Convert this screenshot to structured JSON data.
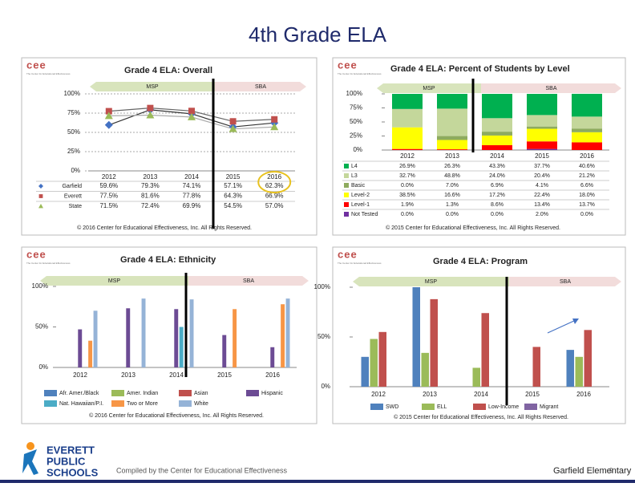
{
  "title": "4th Grade ELA",
  "cee_logo": "cee",
  "cee_tagline": "The Center for Educational Effectiveness",
  "logo": [
    "EVERETT",
    "PUBLIC",
    "SCHOOLS"
  ],
  "footer": {
    "left": "Compiled by the Center for Educational Effectiveness",
    "school": "Garfield Elementary",
    "page": "9"
  },
  "chart_data": [
    {
      "type": "line",
      "title": "Grade 4 ELA: Overall",
      "annotations": [
        "MSP",
        "SBA"
      ],
      "categories": [
        "2012",
        "2013",
        "2014",
        "2015",
        "2016"
      ],
      "series": [
        {
          "name": "Garfield",
          "color": "#4472c4",
          "values": [
            59.6,
            79.3,
            74.1,
            57.1,
            62.3
          ],
          "value_labels": [
            "59.6%",
            "79.3%",
            "74.1%",
            "57.1%",
            "62.3%"
          ]
        },
        {
          "name": "Everett",
          "color": "#c0504d",
          "values": [
            77.5,
            81.6,
            77.8,
            64.3,
            66.9
          ],
          "value_labels": [
            "77.5%",
            "81.6%",
            "77.8%",
            "64.3%",
            "66.9%"
          ]
        },
        {
          "name": "State",
          "color": "#9bbb59",
          "values": [
            71.5,
            72.4,
            69.9,
            54.5,
            57.0
          ],
          "value_labels": [
            "71.5%",
            "72.4%",
            "69.9%",
            "54.5%",
            "57.0%"
          ]
        }
      ],
      "ylim": [
        0,
        100
      ],
      "yticks": [
        {
          "value": 0,
          "label": "0%"
        },
        {
          "value": 25,
          "label": "25%"
        },
        {
          "value": 50,
          "label": "50%"
        },
        {
          "value": 75,
          "label": "75%"
        },
        {
          "value": 100,
          "label": "100%"
        }
      ],
      "grid": true,
      "copyright": "© 2016 Center for Educational Effectiveness, Inc. All Rights Reserved."
    },
    {
      "type": "stacked_bar",
      "title": "Grade 4 ELA: Percent of Students by Level",
      "annotations": [
        "MSP",
        "SBA"
      ],
      "categories": [
        "2012",
        "2013",
        "2014",
        "2015",
        "2016"
      ],
      "series": [
        {
          "name": "L4",
          "color": "#00b050",
          "values": [
            26.9,
            26.3,
            43.3,
            37.7,
            40.6
          ],
          "value_labels": [
            "26.9%",
            "26.3%",
            "43.3%",
            "37.7%",
            "40.6%"
          ]
        },
        {
          "name": "L3",
          "color": "#c4d79b",
          "values": [
            32.7,
            48.8,
            24.0,
            20.4,
            21.2
          ],
          "value_labels": [
            "32.7%",
            "48.8%",
            "24.0%",
            "20.4%",
            "21.2%"
          ]
        },
        {
          "name": "Basic",
          "color": "#8eab5e",
          "values": [
            0.0,
            7.0,
            6.9,
            4.1,
            6.6
          ],
          "value_labels": [
            "0.0%",
            "7.0%",
            "6.9%",
            "4.1%",
            "6.6%"
          ]
        },
        {
          "name": "Level-2",
          "color": "#ffff00",
          "values": [
            38.5,
            16.6,
            17.2,
            22.4,
            18.0
          ],
          "value_labels": [
            "38.5%",
            "16.6%",
            "17.2%",
            "22.4%",
            "18.0%"
          ]
        },
        {
          "name": "Level-1",
          "color": "#ff0000",
          "values": [
            1.9,
            1.3,
            8.6,
            13.4,
            13.7
          ],
          "value_labels": [
            "1.9%",
            "1.3%",
            "8.6%",
            "13.4%",
            "13.7%"
          ]
        },
        {
          "name": "Not Tested",
          "color": "#7030a0",
          "values": [
            0.0,
            0.0,
            0.0,
            2.0,
            0.0
          ],
          "value_labels": [
            "0.0%",
            "0.0%",
            "0.0%",
            "2.0%",
            "0.0%"
          ]
        }
      ],
      "ylim": [
        0,
        100
      ],
      "yticks": [
        {
          "value": 0,
          "label": "0%"
        },
        {
          "value": 25,
          "label": "25%"
        },
        {
          "value": 50,
          "label": "50%"
        },
        {
          "value": 75,
          "label": "75%"
        },
        {
          "value": 100,
          "label": "100%"
        }
      ],
      "copyright": "© 2015 Center for Educational Effectiveness, Inc. All Rights Reserved."
    },
    {
      "type": "grouped_bar",
      "title": "Grade 4 ELA: Ethnicity",
      "annotations": [
        "MSP",
        "SBA"
      ],
      "categories": [
        "2012",
        "2013",
        "2014",
        "2015",
        "2016"
      ],
      "series": [
        {
          "name": "Afr. Amer./Black",
          "color": "#4f81bd",
          "values": [
            null,
            null,
            null,
            null,
            null
          ]
        },
        {
          "name": "Amer. Indian",
          "color": "#9bbb59",
          "values": [
            null,
            null,
            null,
            null,
            null
          ]
        },
        {
          "name": "Asian",
          "color": "#c0504d",
          "values": [
            null,
            null,
            null,
            null,
            null
          ]
        },
        {
          "name": "Hispanic",
          "color": "#6c4b94",
          "values": [
            47,
            73,
            72,
            40,
            25
          ]
        },
        {
          "name": "Nat. Hawaiian/P.I.",
          "color": "#4bacc6",
          "values": [
            null,
            null,
            50,
            null,
            null
          ]
        },
        {
          "name": "Two or More",
          "color": "#f79646",
          "values": [
            33,
            null,
            null,
            72,
            78
          ]
        },
        {
          "name": "White",
          "color": "#95b3d7",
          "values": [
            70,
            85,
            84,
            null,
            85
          ]
        }
      ],
      "ylim": [
        0,
        100
      ],
      "yticks": [
        {
          "value": 0,
          "label": "0%"
        },
        {
          "value": 50,
          "label": "50%"
        },
        {
          "value": 100,
          "label": "100%"
        }
      ],
      "copyright": "© 2016 Center for Educational Effectiveness, Inc. All Rights Reserved."
    },
    {
      "type": "grouped_bar",
      "title": "Grade 4 ELA: Program",
      "annotations": [
        "MSP",
        "SBA"
      ],
      "categories": [
        "2012",
        "2013",
        "2014",
        "2015",
        "2016"
      ],
      "series": [
        {
          "name": "SWD",
          "color": "#4f81bd",
          "values": [
            30,
            100,
            null,
            null,
            37
          ]
        },
        {
          "name": "ELL",
          "color": "#9bbb59",
          "values": [
            48,
            34,
            19,
            null,
            30
          ]
        },
        {
          "name": "Low-Income",
          "color": "#c0504d",
          "values": [
            55,
            88,
            74,
            40,
            57
          ]
        },
        {
          "name": "Migrant",
          "color": "#8064a2",
          "values": [
            null,
            null,
            null,
            null,
            null
          ]
        }
      ],
      "ylim": [
        0,
        100
      ],
      "yticks": [
        {
          "value": 0,
          "label": "0%"
        },
        {
          "value": 50,
          "label": "50%"
        },
        {
          "value": 100,
          "label": "100%"
        }
      ],
      "copyright": "© 2015 Center for Educational Effectiveness, Inc. All Rights Reserved."
    }
  ]
}
